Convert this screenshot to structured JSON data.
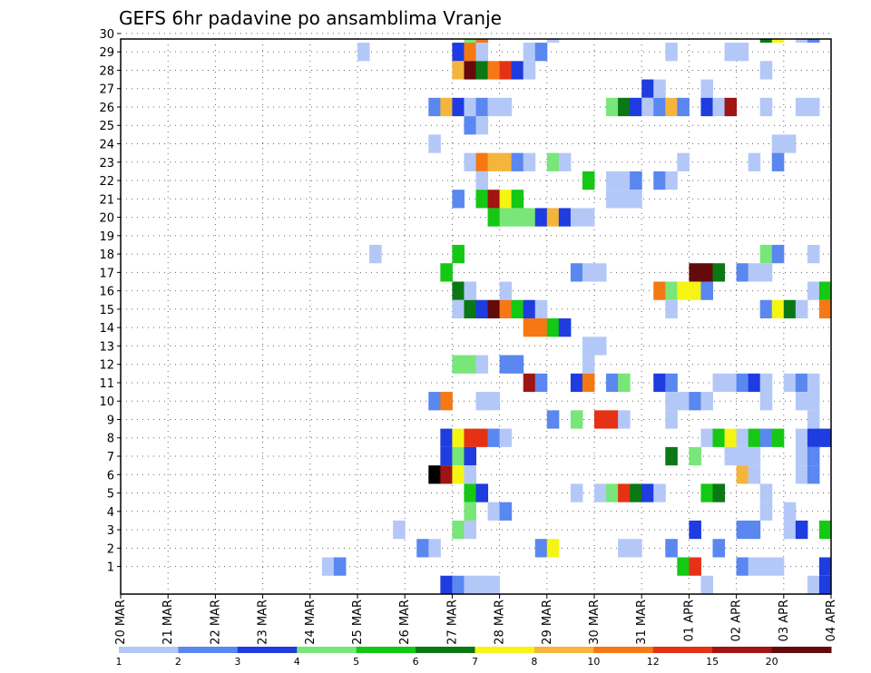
{
  "chart_data": {
    "type": "heatmap",
    "title": "GEFS 6hr padavine po ansamblima Vranje",
    "xlabel": "",
    "ylabel": "",
    "x_tick_labels": [
      "20 MAR",
      "21 MAR",
      "22 MAR",
      "23 MAR",
      "24 MAR",
      "25 MAR",
      "26 MAR",
      "27 MAR",
      "28 MAR",
      "29 MAR",
      "30 MAR",
      "31 MAR",
      "01 APR",
      "02 APR",
      "03 APR",
      "04 APR"
    ],
    "x_range_steps": [
      0,
      60
    ],
    "steps_per_day": 4,
    "y_tick_labels": [
      "1",
      "2",
      "3",
      "4",
      "5",
      "6",
      "7",
      "8",
      "9",
      "10",
      "11",
      "12",
      "13",
      "14",
      "15",
      "16",
      "17",
      "18",
      "19",
      "20",
      "21",
      "22",
      "23",
      "24",
      "25",
      "26",
      "27",
      "28",
      "29",
      "30"
    ],
    "y_range": [
      0,
      30
    ],
    "grid": "dotted",
    "legend_position": "bottom",
    "legend": {
      "labels": [
        "1",
        "2",
        "3",
        "4",
        "5",
        "6",
        "7",
        "8",
        "10",
        "12",
        "15",
        "20"
      ],
      "colors": [
        "#b4c8f8",
        "#5a87f0",
        "#1e3ce0",
        "#78e678",
        "#14c814",
        "#0a7814",
        "#f5f514",
        "#f5b43c",
        "#f57814",
        "#e63214",
        "#a01414",
        "#640a0a"
      ]
    },
    "cells": [
      {
        "member": 30,
        "cells": [
          [
            29,
            4
          ],
          [
            30,
            9
          ],
          [
            36,
            1
          ],
          [
            54,
            6
          ],
          [
            55,
            7
          ],
          [
            57,
            1
          ],
          [
            58,
            2
          ]
        ]
      },
      {
        "member": 29,
        "cells": [
          [
            20,
            1
          ],
          [
            28,
            3
          ],
          [
            29,
            9
          ],
          [
            30,
            1
          ],
          [
            34,
            1
          ],
          [
            35,
            2
          ],
          [
            46,
            1
          ],
          [
            51,
            1
          ],
          [
            52,
            1
          ]
        ]
      },
      {
        "member": 28,
        "cells": [
          [
            28,
            8
          ],
          [
            29,
            12
          ],
          [
            30,
            6
          ],
          [
            31,
            9
          ],
          [
            32,
            10
          ],
          [
            33,
            3
          ],
          [
            34,
            1
          ],
          [
            54,
            1
          ]
        ]
      },
      {
        "member": 27,
        "cells": [
          [
            44,
            3
          ],
          [
            45,
            1
          ],
          [
            49,
            1
          ]
        ]
      },
      {
        "member": 26,
        "cells": [
          [
            26,
            2
          ],
          [
            27,
            8
          ],
          [
            28,
            3
          ],
          [
            29,
            1
          ],
          [
            30,
            2
          ],
          [
            31,
            1
          ],
          [
            32,
            1
          ],
          [
            41,
            4
          ],
          [
            42,
            6
          ],
          [
            43,
            3
          ],
          [
            44,
            1
          ],
          [
            45,
            2
          ],
          [
            46,
            8
          ],
          [
            47,
            2
          ],
          [
            49,
            3
          ],
          [
            50,
            1
          ],
          [
            51,
            11
          ],
          [
            54,
            1
          ],
          [
            57,
            1
          ],
          [
            58,
            1
          ]
        ]
      },
      {
        "member": 25,
        "cells": [
          [
            29,
            2
          ],
          [
            30,
            1
          ]
        ]
      },
      {
        "member": 24,
        "cells": [
          [
            26,
            1
          ],
          [
            55,
            1
          ],
          [
            56,
            1
          ]
        ]
      },
      {
        "member": 23,
        "cells": [
          [
            29,
            1
          ],
          [
            30,
            9
          ],
          [
            31,
            8
          ],
          [
            32,
            8
          ],
          [
            33,
            2
          ],
          [
            34,
            1
          ],
          [
            36,
            4
          ],
          [
            37,
            1
          ],
          [
            47,
            1
          ],
          [
            53,
            1
          ],
          [
            55,
            2
          ]
        ]
      },
      {
        "member": 22,
        "cells": [
          [
            30,
            1
          ],
          [
            39,
            5
          ],
          [
            41,
            1
          ],
          [
            42,
            1
          ],
          [
            43,
            2
          ],
          [
            45,
            2
          ],
          [
            46,
            1
          ]
        ]
      },
      {
        "member": 21,
        "cells": [
          [
            28,
            2
          ],
          [
            30,
            5
          ],
          [
            31,
            11
          ],
          [
            32,
            7
          ],
          [
            33,
            5
          ],
          [
            41,
            1
          ],
          [
            42,
            1
          ],
          [
            43,
            1
          ]
        ]
      },
      {
        "member": 20,
        "cells": [
          [
            31,
            5
          ],
          [
            32,
            4
          ],
          [
            33,
            4
          ],
          [
            34,
            4
          ],
          [
            35,
            3
          ],
          [
            36,
            8
          ],
          [
            37,
            3
          ],
          [
            38,
            1
          ],
          [
            39,
            1
          ]
        ]
      },
      {
        "member": 18,
        "cells": [
          [
            21,
            1
          ],
          [
            28,
            5
          ],
          [
            54,
            4
          ],
          [
            55,
            2
          ],
          [
            58,
            1
          ]
        ]
      },
      {
        "member": 17,
        "cells": [
          [
            27,
            5
          ],
          [
            38,
            2
          ],
          [
            39,
            1
          ],
          [
            40,
            1
          ],
          [
            48,
            12
          ],
          [
            49,
            12
          ],
          [
            50,
            6
          ],
          [
            52,
            2
          ],
          [
            53,
            1
          ],
          [
            54,
            1
          ]
        ]
      },
      {
        "member": 16,
        "cells": [
          [
            28,
            6
          ],
          [
            29,
            1
          ],
          [
            32,
            1
          ],
          [
            45,
            9
          ],
          [
            46,
            4
          ],
          [
            47,
            7
          ],
          [
            48,
            7
          ],
          [
            49,
            2
          ],
          [
            58,
            1
          ],
          [
            59,
            5
          ]
        ]
      },
      {
        "member": 15,
        "cells": [
          [
            28,
            1
          ],
          [
            29,
            6
          ],
          [
            30,
            3
          ],
          [
            31,
            12
          ],
          [
            32,
            9
          ],
          [
            33,
            5
          ],
          [
            34,
            3
          ],
          [
            35,
            1
          ],
          [
            46,
            1
          ],
          [
            54,
            2
          ],
          [
            55,
            7
          ],
          [
            56,
            6
          ],
          [
            57,
            1
          ],
          [
            59,
            9
          ]
        ]
      },
      {
        "member": 14,
        "cells": [
          [
            34,
            9
          ],
          [
            35,
            9
          ],
          [
            36,
            5
          ],
          [
            37,
            3
          ]
        ]
      },
      {
        "member": 13,
        "cells": [
          [
            39,
            1
          ],
          [
            40,
            1
          ]
        ]
      },
      {
        "member": 12,
        "cells": [
          [
            28,
            4
          ],
          [
            29,
            4
          ],
          [
            30,
            1
          ],
          [
            32,
            2
          ],
          [
            33,
            2
          ],
          [
            39,
            1
          ]
        ]
      },
      {
        "member": 11,
        "cells": [
          [
            34,
            11
          ],
          [
            35,
            2
          ],
          [
            38,
            3
          ],
          [
            39,
            9
          ],
          [
            41,
            2
          ],
          [
            42,
            4
          ],
          [
            45,
            3
          ],
          [
            46,
            2
          ],
          [
            50,
            1
          ],
          [
            51,
            1
          ],
          [
            52,
            2
          ],
          [
            53,
            3
          ],
          [
            54,
            1
          ],
          [
            56,
            1
          ],
          [
            57,
            2
          ],
          [
            58,
            1
          ]
        ]
      },
      {
        "member": 10,
        "cells": [
          [
            26,
            2
          ],
          [
            27,
            9
          ],
          [
            30,
            1
          ],
          [
            31,
            1
          ],
          [
            46,
            1
          ],
          [
            47,
            1
          ],
          [
            48,
            2
          ],
          [
            49,
            1
          ],
          [
            54,
            1
          ],
          [
            57,
            1
          ],
          [
            58,
            1
          ]
        ]
      },
      {
        "member": 9,
        "cells": [
          [
            36,
            2
          ],
          [
            38,
            4
          ],
          [
            40,
            10
          ],
          [
            41,
            10
          ],
          [
            42,
            1
          ],
          [
            46,
            1
          ],
          [
            58,
            1
          ]
        ]
      },
      {
        "member": 8,
        "cells": [
          [
            27,
            3
          ],
          [
            28,
            7
          ],
          [
            29,
            10
          ],
          [
            30,
            10
          ],
          [
            31,
            2
          ],
          [
            32,
            1
          ],
          [
            49,
            1
          ],
          [
            50,
            5
          ],
          [
            51,
            7
          ],
          [
            52,
            1
          ],
          [
            53,
            5
          ],
          [
            54,
            2
          ],
          [
            55,
            5
          ],
          [
            57,
            1
          ],
          [
            58,
            3
          ],
          [
            59,
            3
          ]
        ]
      },
      {
        "member": 7,
        "cells": [
          [
            27,
            3
          ],
          [
            28,
            4
          ],
          [
            29,
            3
          ],
          [
            46,
            6
          ],
          [
            48,
            4
          ],
          [
            51,
            1
          ],
          [
            52,
            1
          ],
          [
            53,
            1
          ],
          [
            57,
            1
          ],
          [
            58,
            2
          ]
        ]
      },
      {
        "member": 6,
        "cells": [
          [
            26,
            13
          ],
          [
            27,
            11
          ],
          [
            28,
            7
          ],
          [
            29,
            1
          ],
          [
            52,
            8
          ],
          [
            53,
            1
          ],
          [
            57,
            1
          ],
          [
            58,
            2
          ]
        ]
      },
      {
        "member": 5,
        "cells": [
          [
            29,
            5
          ],
          [
            30,
            3
          ],
          [
            38,
            1
          ],
          [
            40,
            1
          ],
          [
            41,
            4
          ],
          [
            42,
            10
          ],
          [
            43,
            6
          ],
          [
            44,
            3
          ],
          [
            45,
            1
          ],
          [
            49,
            5
          ],
          [
            50,
            6
          ],
          [
            54,
            1
          ]
        ]
      },
      {
        "member": 4,
        "cells": [
          [
            29,
            4
          ],
          [
            31,
            1
          ],
          [
            32,
            2
          ],
          [
            54,
            1
          ],
          [
            56,
            1
          ]
        ]
      },
      {
        "member": 3,
        "cells": [
          [
            23,
            1
          ],
          [
            28,
            4
          ],
          [
            29,
            1
          ],
          [
            48,
            3
          ],
          [
            52,
            2
          ],
          [
            53,
            2
          ],
          [
            56,
            1
          ],
          [
            57,
            3
          ],
          [
            59,
            5
          ]
        ]
      },
      {
        "member": 2,
        "cells": [
          [
            25,
            2
          ],
          [
            26,
            1
          ],
          [
            35,
            2
          ],
          [
            36,
            7
          ],
          [
            42,
            1
          ],
          [
            43,
            1
          ],
          [
            46,
            2
          ],
          [
            50,
            2
          ]
        ]
      },
      {
        "member": 1,
        "cells": [
          [
            17,
            1
          ],
          [
            18,
            2
          ],
          [
            47,
            5
          ],
          [
            48,
            10
          ],
          [
            52,
            2
          ],
          [
            53,
            1
          ],
          [
            54,
            1
          ],
          [
            55,
            1
          ],
          [
            59,
            3
          ]
        ]
      },
      {
        "member": 0,
        "cells": [
          [
            27,
            3
          ],
          [
            28,
            2
          ],
          [
            29,
            1
          ],
          [
            30,
            1
          ],
          [
            31,
            1
          ],
          [
            49,
            1
          ],
          [
            58,
            1
          ],
          [
            59,
            3
          ]
        ]
      }
    ]
  }
}
